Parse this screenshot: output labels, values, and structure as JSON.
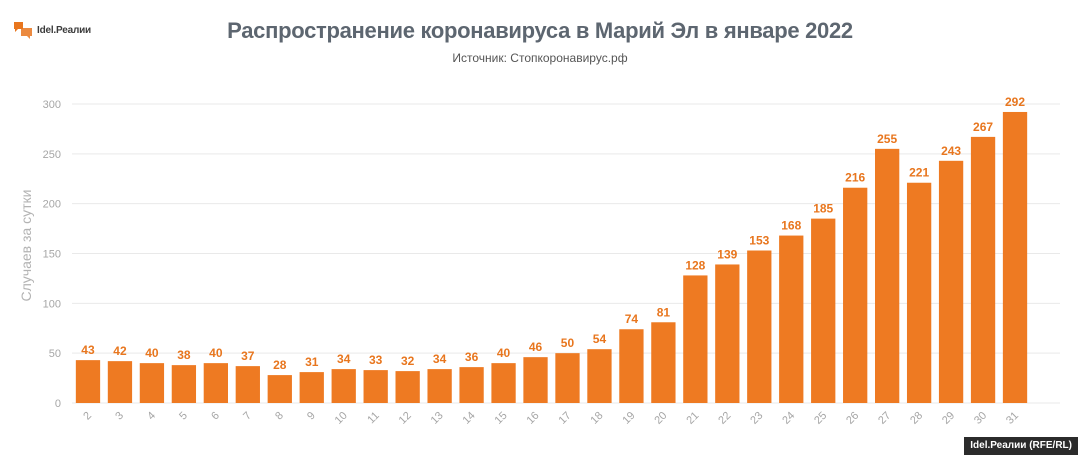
{
  "brand": {
    "logo_text": "Idel.Реалии",
    "credit": "Idel.Реалии (RFE/RL)",
    "logo_color": "#e8761e"
  },
  "chart_data": {
    "type": "bar",
    "title": "Распространение коронавируса в Марий Эл в январе 2022",
    "subtitle": "Источник: Стопкоронавирус.рф",
    "xlabel": "",
    "ylabel": "Случаев за сутки",
    "categories": [
      "2",
      "3",
      "4",
      "5",
      "6",
      "7",
      "8",
      "9",
      "10",
      "11",
      "12",
      "13",
      "14",
      "15",
      "16",
      "17",
      "18",
      "19",
      "20",
      "21",
      "22",
      "23",
      "24",
      "25",
      "26",
      "27",
      "28",
      "29",
      "30",
      "31"
    ],
    "values": [
      43,
      42,
      40,
      38,
      40,
      37,
      28,
      31,
      34,
      33,
      32,
      34,
      36,
      40,
      46,
      50,
      54,
      74,
      81,
      128,
      139,
      153,
      168,
      185,
      216,
      255,
      221,
      243,
      267,
      292
    ],
    "ylim": [
      0,
      300
    ],
    "yticks": [
      0,
      50,
      100,
      150,
      200,
      250,
      300
    ],
    "grid": true,
    "bar_color": "#ee7a22",
    "label_color": "#e8761e"
  }
}
